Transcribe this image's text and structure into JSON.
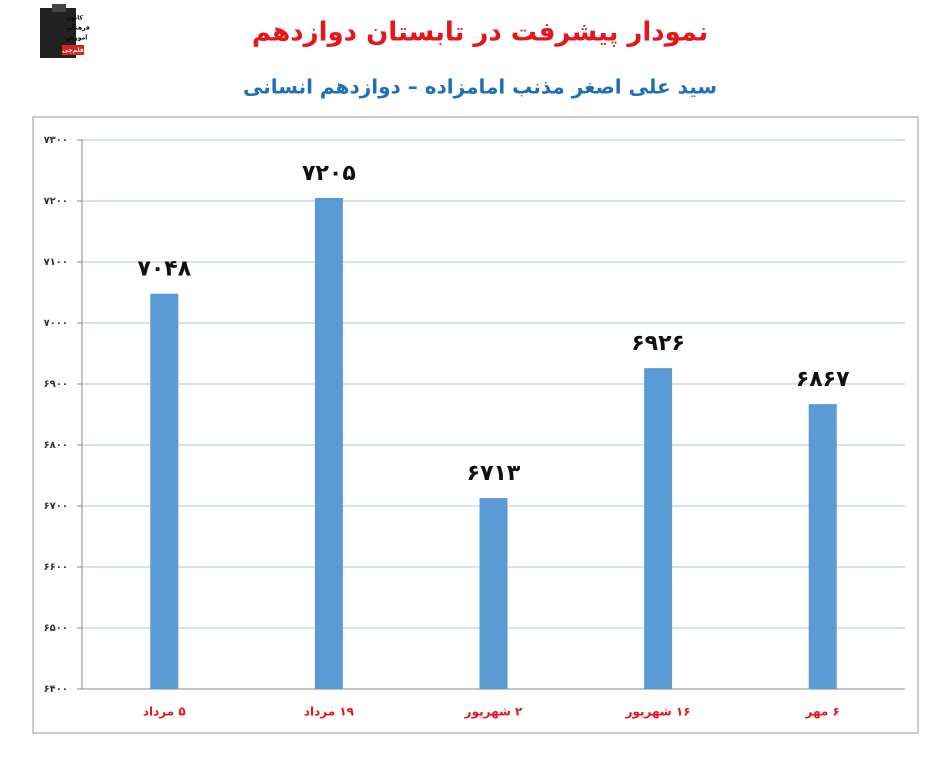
{
  "logo": {
    "lines": [
      "کانون",
      "فرهنگی",
      "آموزش",
      "قلم‌چی"
    ]
  },
  "chart_data": {
    "type": "bar",
    "title": "نمودار پیشرفت در تابستان دوازدهم",
    "subtitle": "سید علی اصغر مذنب امامزاده – دوازدهم انسانی",
    "categories": [
      "۵ مرداد",
      "۱۹ مرداد",
      "۲ شهریور",
      "۱۶ شهریور",
      "۶ مهر"
    ],
    "values": [
      7048,
      7205,
      6713,
      6926,
      6867
    ],
    "value_labels": [
      "۷۰۴۸",
      "۷۲۰۵",
      "۶۷۱۳",
      "۶۹۲۶",
      "۶۸۶۷"
    ],
    "color": "#5b9bd5",
    "ylim": [
      6400,
      7300
    ],
    "yticks": [
      {
        "value": 6400,
        "label": "۶۴۰۰"
      },
      {
        "value": 6500,
        "label": "۶۵۰۰"
      },
      {
        "value": 6600,
        "label": "۶۶۰۰"
      },
      {
        "value": 6700,
        "label": "۶۷۰۰"
      },
      {
        "value": 6800,
        "label": "۶۸۰۰"
      },
      {
        "value": 6900,
        "label": "۶۹۰۰"
      },
      {
        "value": 7000,
        "label": "۷۰۰۰"
      },
      {
        "value": 7100,
        "label": "۷۱۰۰"
      },
      {
        "value": 7200,
        "label": "۷۲۰۰"
      },
      {
        "value": 7300,
        "label": "۷۳۰۰"
      }
    ],
    "grid": true
  }
}
